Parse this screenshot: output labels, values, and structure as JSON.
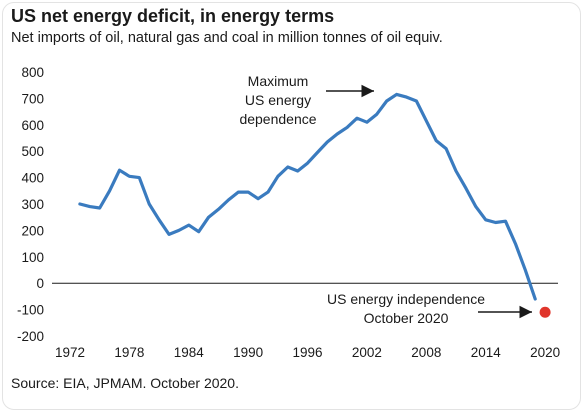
{
  "chart_data": {
    "type": "line",
    "title": "US net energy deficit, in energy terms",
    "subtitle": "Net imports of oil, natural gas and coal in million tonnes of oil equiv.",
    "source": "Source: EIA, JPMAM. October 2020.",
    "ylim": [
      -200,
      800
    ],
    "yticks": [
      -200,
      -100,
      0,
      100,
      200,
      300,
      400,
      500,
      600,
      700,
      800
    ],
    "ytick_labels": [
      "-200",
      "-100",
      "0",
      "100",
      "200",
      "300",
      "400",
      "500",
      "600",
      "700",
      "800"
    ],
    "xlim": [
      1972,
      2021
    ],
    "xticks": [
      1972,
      1978,
      1984,
      1990,
      1996,
      2002,
      2008,
      2014,
      2020
    ],
    "xtick_labels": [
      "1972",
      "1978",
      "1984",
      "1990",
      "1996",
      "2002",
      "2008",
      "2014",
      "2020"
    ],
    "grid": false,
    "line_color": "#3a7bbf",
    "marker_color": "#e0352b",
    "series": [
      {
        "x": [
          1973,
          1974,
          1975,
          1976,
          1977,
          1978,
          1979,
          1980,
          1981,
          1982,
          1983,
          1984,
          1985,
          1986,
          1987,
          1988,
          1989,
          1990,
          1991,
          1992,
          1993,
          1994,
          1995,
          1996,
          1997,
          1998,
          1999,
          2000,
          2001,
          2002,
          2003,
          2004,
          2005,
          2006,
          2007,
          2008,
          2009,
          2010,
          2011,
          2012,
          2013,
          2014,
          2015,
          2016,
          2017,
          2018,
          2019
        ],
        "values": [
          300,
          290,
          285,
          350,
          428,
          405,
          400,
          300,
          240,
          185,
          200,
          220,
          195,
          250,
          280,
          315,
          345,
          345,
          320,
          345,
          405,
          440,
          425,
          455,
          495,
          535,
          565,
          590,
          625,
          610,
          640,
          690,
          715,
          705,
          690,
          615,
          540,
          510,
          425,
          360,
          290,
          240,
          230,
          235,
          150,
          50,
          -60
        ]
      }
    ],
    "marker": {
      "x": 2020,
      "y": -110
    },
    "annotations": [
      {
        "text": [
          "Maximum",
          "US energy",
          "dependence"
        ]
      },
      {
        "text": [
          "US energy independence",
          "October 2020"
        ]
      }
    ]
  }
}
